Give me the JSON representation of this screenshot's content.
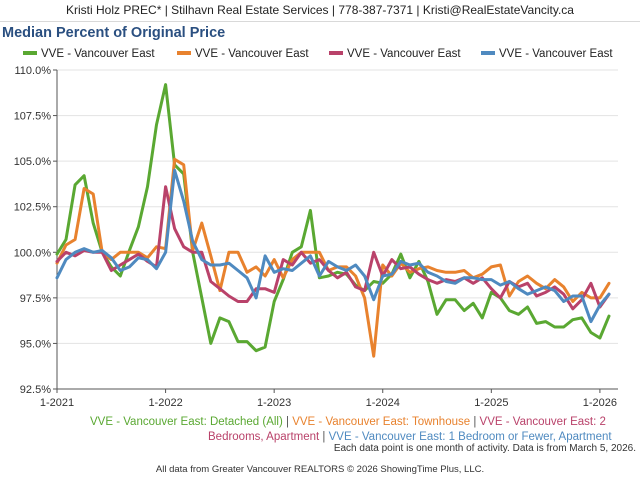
{
  "header": {
    "contact": "Kristi Holz PREC* | Stilhavn Real Estate Services | 778-387-7371 | Kristi@RealEstateVancity.ca"
  },
  "chart_data": {
    "type": "line",
    "title": "Median Percent of Original Price",
    "xlabel": "",
    "ylabel": "",
    "ylim": [
      92.5,
      110.0
    ],
    "y_ticks": [
      92.5,
      95.0,
      97.5,
      100.0,
      102.5,
      105.0,
      107.5,
      110.0
    ],
    "y_tick_labels": [
      "92.5%",
      "95.0%",
      "97.5%",
      "100.0%",
      "102.5%",
      "105.0%",
      "107.5%",
      "110.0%"
    ],
    "x_range": [
      0,
      62
    ],
    "x_ticks": [
      0,
      12,
      24,
      36,
      48,
      60
    ],
    "x_tick_labels": [
      "1-2021",
      "1-2022",
      "1-2023",
      "1-2024",
      "1-2025",
      "1-2026"
    ],
    "legend_top": [
      {
        "label": "VVE - Vancouver East",
        "color": "#5aa832"
      },
      {
        "label": "VVE - Vancouver East",
        "color": "#e8822e"
      },
      {
        "label": "VVE - Vancouver East",
        "color": "#b9426a"
      },
      {
        "label": "VVE - Vancouver East",
        "color": "#4f8ac0"
      }
    ],
    "legend_bottom_line1": [
      {
        "text": "VVE - Vancouver East: Detached (All)",
        "color": "#5aa832"
      },
      {
        "text": " | ",
        "color": "#555555"
      },
      {
        "text": "VVE - Vancouver East: Townhouse",
        "color": "#e8822e"
      },
      {
        "text": " | ",
        "color": "#555555"
      },
      {
        "text": "VVE - Vancouver East: 2",
        "color": "#b9426a"
      }
    ],
    "legend_bottom_line2": [
      {
        "text": "Bedrooms, Apartment",
        "color": "#b9426a"
      },
      {
        "text": " | ",
        "color": "#555555"
      },
      {
        "text": "VVE - Vancouver East: 1 Bedroom or Fewer, Apartment",
        "color": "#4f8ac0"
      }
    ],
    "series": [
      {
        "name": "VVE - Vancouver East: Detached (All)",
        "color": "#5aa832",
        "values": [
          99.9,
          100.7,
          103.7,
          104.2,
          101.6,
          100.0,
          99.2,
          98.7,
          100.1,
          101.4,
          103.6,
          107.0,
          109.2,
          104.8,
          104.3,
          100.0,
          97.5,
          95.0,
          96.4,
          96.2,
          95.1,
          95.1,
          94.6,
          94.8,
          97.3,
          98.5,
          100.0,
          100.3,
          102.3,
          98.6,
          98.7,
          98.9,
          98.8,
          98.2,
          97.9,
          98.4,
          98.3,
          98.8,
          99.9,
          98.6,
          99.5,
          98.4,
          96.6,
          97.4,
          97.4,
          96.8,
          97.2,
          96.4,
          97.8,
          97.5,
          96.8,
          96.6,
          97.0,
          96.1,
          96.2,
          95.9,
          95.9,
          96.3,
          96.4,
          95.6,
          95.3,
          96.5
        ]
      },
      {
        "name": "VVE - Vancouver East: Townhouse",
        "color": "#e8822e",
        "values": [
          99.4,
          100.4,
          100.7,
          103.5,
          103.2,
          100.0,
          99.6,
          100.0,
          100.0,
          100.0,
          99.7,
          100.3,
          100.2,
          105.1,
          104.8,
          100.1,
          101.6,
          99.8,
          97.9,
          100.0,
          100.0,
          98.9,
          99.2,
          98.7,
          99.6,
          98.6,
          99.6,
          100.0,
          100.0,
          100.0,
          99.0,
          99.2,
          99.2,
          98.7,
          97.5,
          94.3,
          99.3,
          98.7,
          99.4,
          98.9,
          99.1,
          99.2,
          99.0,
          98.9,
          98.9,
          99.0,
          98.6,
          98.8,
          99.2,
          99.3,
          97.6,
          98.4,
          98.7,
          98.3,
          98.0,
          98.5,
          98.1,
          97.3,
          97.8,
          97.5,
          97.5,
          98.3
        ]
      },
      {
        "name": "VVE - Vancouver East: 2 Bedrooms, Apartment",
        "color": "#b9426a",
        "values": [
          99.5,
          100.0,
          99.8,
          100.1,
          100.0,
          100.0,
          99.0,
          99.3,
          99.6,
          99.9,
          99.5,
          99.2,
          103.6,
          101.3,
          100.3,
          100.0,
          100.0,
          98.4,
          98.0,
          97.6,
          97.3,
          97.3,
          98.0,
          98.0,
          97.8,
          99.6,
          99.3,
          100.0,
          99.4,
          99.6,
          99.0,
          98.6,
          98.9,
          98.1,
          97.9,
          100.0,
          98.7,
          99.6,
          99.1,
          99.2,
          98.8,
          98.5,
          98.3,
          98.5,
          98.4,
          98.6,
          98.3,
          98.6,
          98.0,
          97.5,
          98.4,
          98.1,
          98.3,
          97.6,
          97.8,
          98.1,
          97.7,
          96.9,
          97.4,
          98.3,
          97.0,
          97.7
        ]
      },
      {
        "name": "VVE - Vancouver East: 1 Bedroom or Fewer, Apartment",
        "color": "#4f8ac0",
        "values": [
          98.6,
          99.6,
          100.0,
          100.2,
          100.0,
          100.1,
          99.7,
          99.0,
          99.2,
          99.7,
          99.6,
          99.1,
          100.0,
          104.5,
          102.8,
          100.6,
          99.6,
          99.3,
          99.3,
          99.4,
          99.0,
          98.6,
          97.5,
          99.8,
          98.9,
          99.1,
          99.0,
          99.4,
          99.8,
          98.7,
          99.5,
          99.2,
          99.0,
          99.3,
          98.7,
          97.4,
          98.7,
          98.8,
          99.5,
          99.3,
          99.4,
          98.9,
          98.7,
          98.4,
          98.3,
          98.6,
          98.6,
          98.5,
          98.5,
          98.2,
          98.4,
          98.0,
          97.7,
          97.9,
          98.1,
          97.9,
          97.3,
          97.6,
          97.6,
          96.2,
          97.1,
          97.7
        ]
      }
    ]
  },
  "footer": {
    "note": "Each data point is one month of activity. Data is from March 5, 2026.",
    "source": "All data from Greater Vancouver REALTORS © 2026 ShowingTime Plus, LLC."
  }
}
